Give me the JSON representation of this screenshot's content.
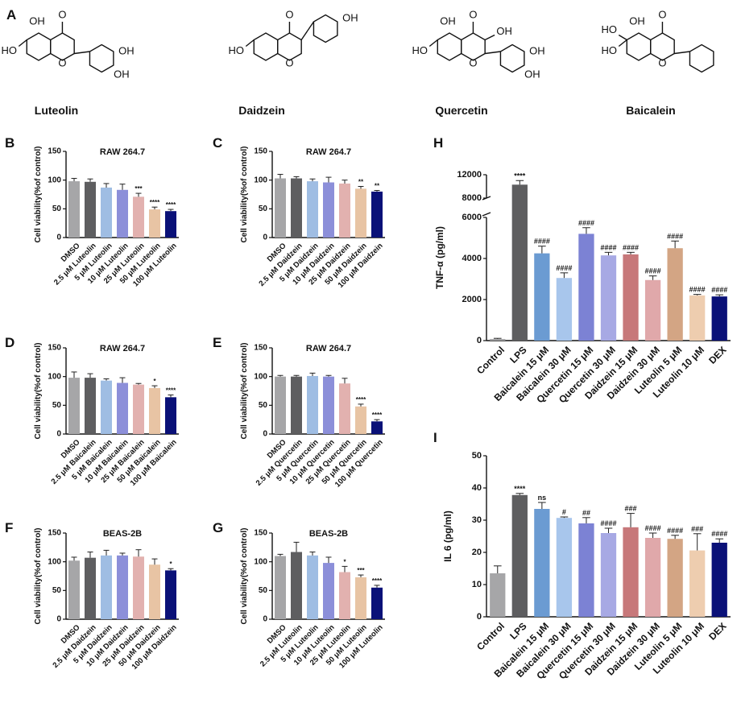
{
  "colors": {
    "grey": "#a6a6a8",
    "dark": "#5e5e60",
    "lblue": "#9fbde3",
    "lav": "#8c8fd9",
    "pink": "#e2b1af",
    "tan": "#e8c4a4",
    "navy": "#0a1178",
    "blue1": "#6b9bd2",
    "blue2": "#a8c6ec",
    "purp1": "#7c82d4",
    "purp2": "#a7a9e4",
    "rose1": "#c7787a",
    "rose2": "#e0a8aa",
    "tan1": "#d3a584",
    "tan2": "#eecdaf"
  },
  "structures": {
    "panel_letter": "A",
    "items": [
      {
        "name": "Luteolin",
        "labels": [
          "OH",
          "O",
          "HO",
          "O",
          "OH",
          "OH"
        ]
      },
      {
        "name": "Daidzein",
        "labels": [
          "O",
          "OH",
          "HO",
          "O"
        ]
      },
      {
        "name": "Quercetin",
        "labels": [
          "OH",
          "O",
          "HO",
          "O",
          "OH",
          "OH",
          "OH"
        ]
      },
      {
        "name": "Baicalein",
        "labels": [
          "OH",
          "O",
          "HO",
          "HO",
          "O"
        ]
      }
    ]
  },
  "chart_data": [
    {
      "panel": "B",
      "type": "bar",
      "title": "RAW 264.7",
      "ylabel": "Cell viability(%of control)",
      "ylim": [
        0,
        150
      ],
      "yticks": [
        0,
        50,
        100,
        150
      ],
      "categories": [
        "DMSO",
        "2.5 μM Luteolin",
        "5 μM Luteolin",
        "10 μM Luteolin",
        "25 μM Luteolin",
        "50 μM Luteolin",
        "100 μM Luteolin"
      ],
      "values": [
        98,
        97,
        87,
        83,
        71,
        49,
        46
      ],
      "errors": [
        5,
        5,
        7,
        10,
        6,
        4,
        3
      ],
      "annotations": [
        "",
        "",
        "",
        "",
        "***",
        "****",
        "****"
      ],
      "colors": [
        "grey",
        "dark",
        "lblue",
        "lav",
        "pink",
        "tan",
        "navy"
      ]
    },
    {
      "panel": "C",
      "type": "bar",
      "title": "RAW 264.7",
      "ylabel": "Cell viability(%of control)",
      "ylim": [
        0,
        150
      ],
      "yticks": [
        0,
        50,
        100,
        150
      ],
      "categories": [
        "DMSO",
        "2.5 μM Daidzein",
        "5 μM Daidzein",
        "10 μM Daidzein",
        "25 μM Daidzein",
        "50 μM Daidzein",
        "100 μM Daidzein"
      ],
      "values": [
        103,
        103,
        98,
        96,
        94,
        85,
        80
      ],
      "errors": [
        7,
        3,
        4,
        9,
        6,
        4,
        2
      ],
      "annotations": [
        "",
        "",
        "",
        "",
        "",
        "**",
        "**"
      ],
      "colors": [
        "grey",
        "dark",
        "lblue",
        "lav",
        "pink",
        "tan",
        "navy"
      ]
    },
    {
      "panel": "D",
      "type": "bar",
      "title": "RAW 264.7",
      "ylabel": "Cell viability(%of control)",
      "ylim": [
        0,
        150
      ],
      "yticks": [
        0,
        50,
        100,
        150
      ],
      "categories": [
        "DMSO",
        "2.5 μM Baicalein",
        "5 μM Baicalein",
        "10 μM Baicalein",
        "25 μM Baicalein",
        "50 μM Baicalein",
        "100 μM Baicalein"
      ],
      "values": [
        98,
        98,
        93,
        89,
        86,
        80,
        64
      ],
      "errors": [
        10,
        7,
        3,
        9,
        2,
        4,
        4
      ],
      "annotations": [
        "",
        "",
        "",
        "",
        "",
        "*",
        "****"
      ],
      "colors": [
        "grey",
        "dark",
        "lblue",
        "lav",
        "pink",
        "tan",
        "navy"
      ]
    },
    {
      "panel": "E",
      "type": "bar",
      "title": "RAW 264.7",
      "ylabel": "Cell viability(%of control)",
      "ylim": [
        0,
        150
      ],
      "yticks": [
        0,
        50,
        100,
        150
      ],
      "categories": [
        "DMSO",
        "2.5 μM Quercetin",
        "5 μM Quercetin",
        "10 μM Quercetin",
        "25 μM Quercetin",
        "50 μM Quercetin",
        "100 μM Quercetin"
      ],
      "values": [
        100,
        100,
        101,
        100,
        88,
        48,
        22
      ],
      "errors": [
        2,
        2,
        5,
        2,
        9,
        4,
        3
      ],
      "annotations": [
        "",
        "",
        "",
        "",
        "",
        "****",
        "****"
      ],
      "colors": [
        "grey",
        "dark",
        "lblue",
        "lav",
        "pink",
        "tan",
        "navy"
      ]
    },
    {
      "panel": "F",
      "type": "bar",
      "title": "BEAS-2B",
      "ylabel": "Cell viability(%of control)",
      "ylim": [
        0,
        150
      ],
      "yticks": [
        0,
        50,
        100,
        150
      ],
      "categories": [
        "DMSO",
        "2.5 μM Daidzein",
        "5 μM Daidzein",
        "10 μM Daidzein",
        "25 μM Daidzein",
        "50 μM Daidzein",
        "100 μM Daidzein"
      ],
      "values": [
        102,
        107,
        111,
        111,
        109,
        95,
        85
      ],
      "errors": [
        6,
        10,
        9,
        4,
        12,
        10,
        3
      ],
      "annotations": [
        "",
        "",
        "",
        "",
        "",
        "",
        "*"
      ],
      "colors": [
        "grey",
        "dark",
        "lblue",
        "lav",
        "pink",
        "tan",
        "navy"
      ]
    },
    {
      "panel": "G",
      "type": "bar",
      "title": "BEAS-2B",
      "ylabel": "Cell viability(%of control)",
      "ylim": [
        0,
        150
      ],
      "yticks": [
        0,
        50,
        100,
        150
      ],
      "categories": [
        "DMSO",
        "2.5 μM Luteolin",
        "5 μM Luteolin",
        "10 μM Luteolin",
        "25 μM Luteolin",
        "50 μM Luteolin",
        "100 μM Luteolin"
      ],
      "values": [
        110,
        117,
        111,
        98,
        82,
        73,
        55
      ],
      "errors": [
        3,
        17,
        6,
        10,
        10,
        4,
        4
      ],
      "annotations": [
        "",
        "",
        "",
        "",
        "*",
        "***",
        "****"
      ],
      "colors": [
        "grey",
        "dark",
        "lblue",
        "lav",
        "pink",
        "tan",
        "navy"
      ]
    },
    {
      "panel": "H",
      "type": "bar",
      "title": "",
      "ylabel": "TNF-α (pg/ml)",
      "axis_break": [
        6000,
        8000
      ],
      "yticks_lower": [
        0,
        2000,
        4000,
        6000
      ],
      "yticks_upper": [
        8000,
        12000
      ],
      "ylim": [
        0,
        12000
      ],
      "categories": [
        "Control",
        "LPS",
        "Baicalein 15 μM",
        "Baicalein 30 μM",
        "Quercetin 15 μM",
        "Quercetin 30 μM",
        "Daidzein 15 μM",
        "Daidzein 30 μM",
        "Luteolin 5 μM",
        "Luteolin 10 μM",
        "DEX"
      ],
      "values": [
        80,
        10300,
        4250,
        3050,
        5200,
        4150,
        4200,
        2950,
        4500,
        2200,
        2150
      ],
      "errors": [
        30,
        700,
        350,
        250,
        300,
        150,
        100,
        200,
        350,
        50,
        80
      ],
      "annotations": [
        "",
        "****",
        "####",
        "####",
        "####",
        "####",
        "####",
        "####",
        "####",
        "####",
        "####"
      ],
      "colors": [
        "grey",
        "dark",
        "blue1",
        "blue2",
        "purp1",
        "purp2",
        "rose1",
        "rose2",
        "tan1",
        "tan2",
        "navy"
      ]
    },
    {
      "panel": "I",
      "type": "bar",
      "title": "",
      "ylabel": "IL 6 (pg/ml)",
      "ylim": [
        0,
        50
      ],
      "yticks": [
        0,
        10,
        20,
        30,
        40,
        50
      ],
      "categories": [
        "Control",
        "LPS",
        "Baicalein 15 μM",
        "Baicalein 30 μM",
        "Quercetin 15 μM",
        "Quercetin 30 μM",
        "Daidzein 15 μM",
        "Daidzein 30 μM",
        "Luteolin 5 μM",
        "Luteolin 10 μM",
        "DEX"
      ],
      "values": [
        13.5,
        37.8,
        33.5,
        30.7,
        29.0,
        26.0,
        27.8,
        24.5,
        24.2,
        20.6,
        23.0
      ],
      "errors": [
        2.3,
        0.5,
        2.0,
        0.3,
        1.8,
        1.5,
        4.3,
        1.5,
        1.1,
        5.2,
        1.2
      ],
      "annotations": [
        "",
        "****",
        "ns",
        "#",
        "##",
        "####",
        "###",
        "####",
        "####",
        "###",
        "####"
      ],
      "colors": [
        "grey",
        "dark",
        "blue1",
        "blue2",
        "purp1",
        "purp2",
        "rose1",
        "rose2",
        "tan1",
        "tan2",
        "navy"
      ]
    }
  ]
}
